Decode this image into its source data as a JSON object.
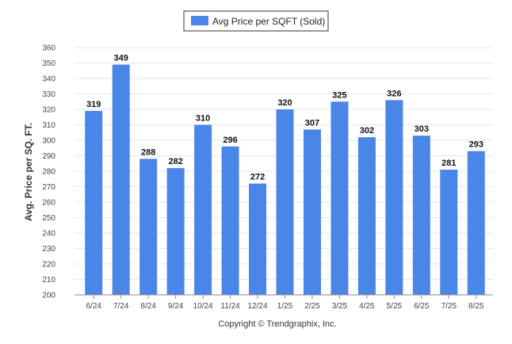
{
  "chart_data": {
    "type": "bar",
    "categories": [
      "6/24",
      "7/24",
      "8/24",
      "9/24",
      "10/24",
      "11/24",
      "12/24",
      "1/25",
      "2/25",
      "3/25",
      "4/25",
      "5/25",
      "6/25",
      "7/25",
      "8/25"
    ],
    "series": [
      {
        "name": "Avg Price per SQFT (Sold)",
        "values": [
          319,
          349,
          288,
          282,
          310,
          296,
          272,
          320,
          307,
          325,
          302,
          326,
          303,
          281,
          293
        ],
        "color": "#4a86e8"
      }
    ],
    "xlabel": "",
    "ylabel": "Avg. Price per SQ. FT.",
    "ylim": [
      200,
      360
    ],
    "yticks": [
      200,
      210,
      220,
      230,
      240,
      250,
      260,
      270,
      280,
      290,
      300,
      310,
      320,
      330,
      340,
      350,
      360
    ],
    "grid": true,
    "legend_position": "top-center",
    "data_labels": true,
    "footer": "Copyright © Trendgraphix, Inc."
  }
}
